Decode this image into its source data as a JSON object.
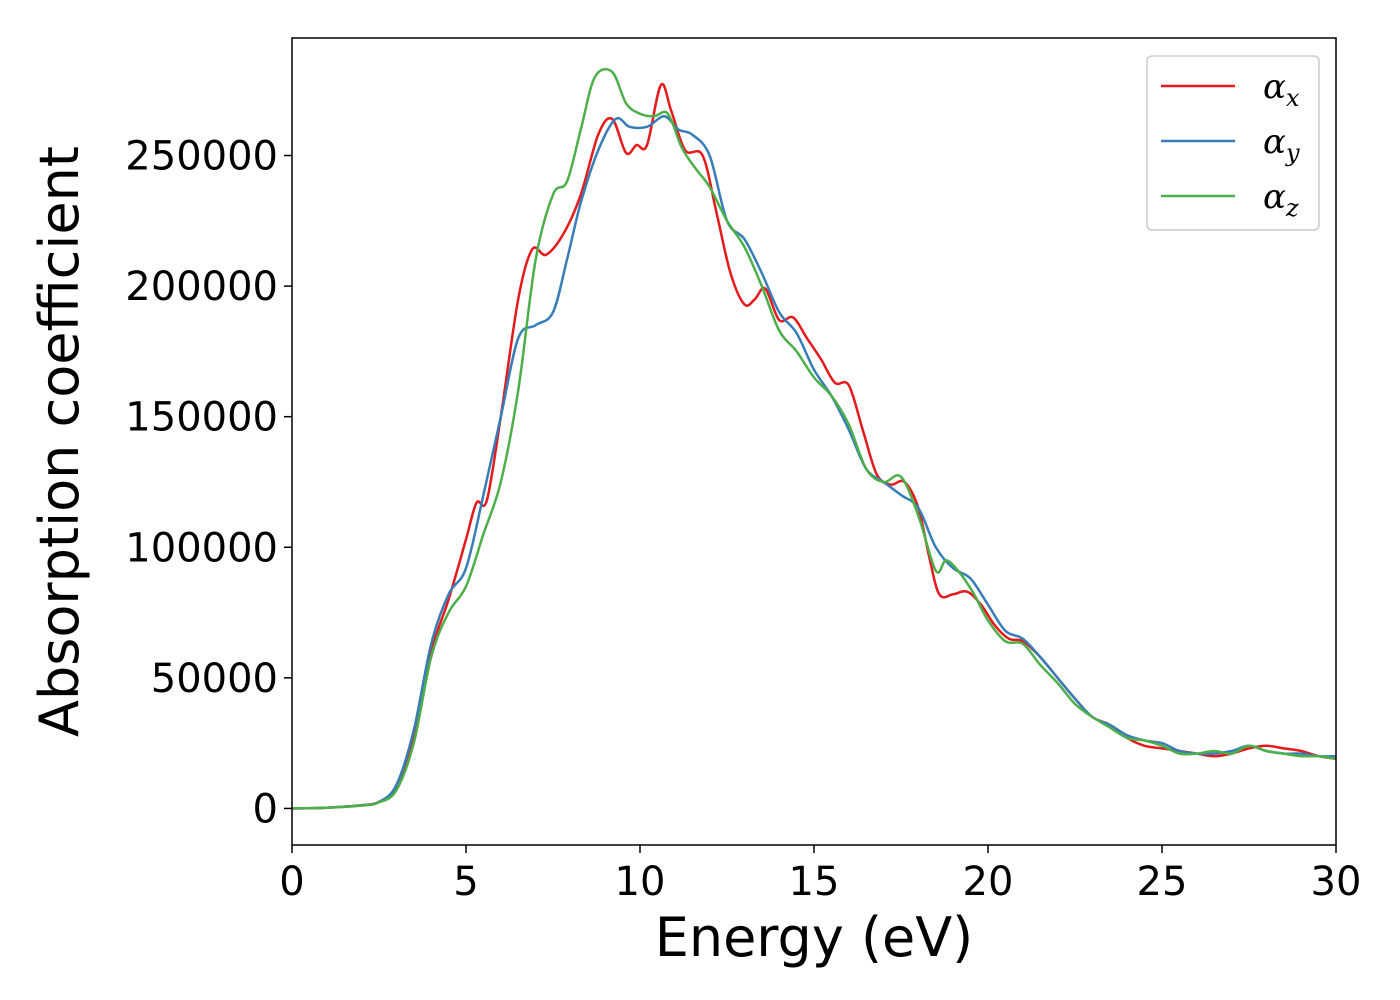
{
  "chart_data": {
    "type": "line",
    "title": "",
    "xlabel": "Energy (eV)",
    "ylabel": "Absorption coefficient",
    "xlim": [
      0,
      30
    ],
    "ylim": [
      -14000,
      295000
    ],
    "xticks": [
      0,
      5,
      10,
      15,
      20,
      25,
      30
    ],
    "xtick_labels": [
      "0",
      "5",
      "10",
      "15",
      "20",
      "25",
      "30"
    ],
    "yticks": [
      0,
      50000,
      100000,
      150000,
      200000,
      250000
    ],
    "ytick_labels": [
      "0",
      "50000",
      "100000",
      "150000",
      "200000",
      "250000"
    ],
    "grid": false,
    "legend_position": "top-right",
    "series": [
      {
        "name": "α",
        "subscript": "x",
        "color": "#e41a1c",
        "x": [
          0,
          1,
          2,
          2.5,
          3,
          3.5,
          4,
          4.5,
          5,
          5.3,
          5.6,
          6,
          6.5,
          6.9,
          7.3,
          7.8,
          8.3,
          8.8,
          9.2,
          9.6,
          9.9,
          10.2,
          10.6,
          10.9,
          11.3,
          11.8,
          12.2,
          12.6,
          13,
          13.3,
          13.6,
          14,
          14.4,
          14.8,
          15.2,
          15.6,
          16,
          16.4,
          16.8,
          17.2,
          17.6,
          18,
          18.3,
          18.6,
          19,
          19.4,
          19.8,
          20.2,
          20.6,
          21,
          21.5,
          22,
          22.5,
          23,
          23.5,
          24,
          24.5,
          25,
          25.5,
          26,
          26.5,
          27,
          27.5,
          28,
          28.5,
          29,
          29.5,
          30
        ],
        "y": [
          0,
          300,
          1200,
          2500,
          8000,
          28000,
          60000,
          80000,
          103000,
          117000,
          118000,
          150000,
          195000,
          214000,
          212000,
          220000,
          235000,
          258000,
          264000,
          251000,
          254000,
          254000,
          277000,
          267000,
          252000,
          250000,
          228000,
          205000,
          193000,
          195000,
          199000,
          187000,
          188000,
          180000,
          172000,
          163000,
          162000,
          145000,
          128000,
          124000,
          125000,
          115000,
          97000,
          82000,
          82000,
          83000,
          78000,
          70000,
          65000,
          64000,
          58000,
          50000,
          42000,
          35000,
          32000,
          27000,
          24000,
          23000,
          22000,
          21000,
          20000,
          21000,
          23000,
          24000,
          23000,
          22000,
          20000,
          19000
        ]
      },
      {
        "name": "α",
        "subscript": "y",
        "color": "#377eb8",
        "x": [
          0,
          1,
          2,
          2.5,
          3,
          3.5,
          4,
          4.5,
          5,
          5.5,
          6,
          6.5,
          7,
          7.5,
          7.9,
          8.3,
          8.8,
          9.3,
          9.7,
          10.2,
          10.7,
          11.1,
          11.5,
          12,
          12.5,
          13,
          13.5,
          14,
          14.5,
          15,
          15.5,
          16,
          16.5,
          17,
          17.5,
          18,
          18.5,
          19,
          19.5,
          20,
          20.5,
          21,
          21.5,
          22,
          22.5,
          23,
          23.5,
          24,
          24.5,
          25,
          25.5,
          26,
          26.5,
          27,
          27.5,
          28,
          28.5,
          29,
          29.5,
          30
        ],
        "y": [
          0,
          300,
          1200,
          2500,
          9000,
          30000,
          63000,
          82000,
          92000,
          120000,
          150000,
          180000,
          185000,
          190000,
          210000,
          232000,
          252000,
          264000,
          261000,
          261000,
          265000,
          260000,
          258000,
          250000,
          225000,
          218000,
          205000,
          190000,
          182000,
          168000,
          158000,
          145000,
          130000,
          125000,
          120000,
          115000,
          100000,
          92000,
          88000,
          78000,
          68000,
          65000,
          58000,
          50000,
          42000,
          35000,
          32000,
          28000,
          26000,
          25000,
          22000,
          21000,
          21000,
          22000,
          24000,
          22000,
          21000,
          21000,
          20000,
          20000
        ]
      },
      {
        "name": "α",
        "subscript": "z",
        "color": "#4daf4a",
        "x": [
          0,
          1,
          2,
          2.5,
          3,
          3.5,
          4,
          4.5,
          5,
          5.5,
          6,
          6.5,
          7,
          7.5,
          7.9,
          8.3,
          8.7,
          9.2,
          9.6,
          10,
          10.4,
          10.8,
          11.2,
          11.6,
          12,
          12.5,
          13,
          13.5,
          14,
          14.5,
          15,
          15.5,
          16,
          16.5,
          17,
          17.5,
          18,
          18.5,
          18.8,
          19.2,
          19.6,
          20,
          20.5,
          21,
          21.5,
          22,
          22.5,
          23,
          23.5,
          24,
          24.5,
          25,
          25.5,
          26,
          26.5,
          27,
          27.5,
          28,
          28.5,
          29,
          29.5,
          30
        ],
        "y": [
          0,
          300,
          1100,
          2300,
          7000,
          25000,
          58000,
          75000,
          85000,
          105000,
          125000,
          160000,
          210000,
          235000,
          240000,
          260000,
          280000,
          282000,
          270000,
          266000,
          265000,
          266000,
          253000,
          245000,
          238000,
          225000,
          215000,
          200000,
          183000,
          175000,
          165000,
          158000,
          147000,
          130000,
          125000,
          127000,
          112000,
          91000,
          95000,
          90000,
          82000,
          72000,
          64000,
          63000,
          55000,
          48000,
          40000,
          35000,
          31000,
          27000,
          26000,
          24000,
          21000,
          21000,
          22000,
          21000,
          24000,
          22000,
          21000,
          20000,
          20000,
          19000
        ]
      }
    ]
  }
}
